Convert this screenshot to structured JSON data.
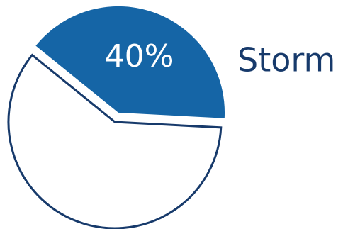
{
  "chart_data": {
    "type": "pie",
    "slices": [
      {
        "label": "Storm",
        "value": 40,
        "display": "40%",
        "color": "#1565a6",
        "exploded": true
      },
      {
        "label": "",
        "value": 60,
        "display": "",
        "color": "#ffffff",
        "exploded": false
      }
    ],
    "legend": {
      "placement": "right"
    },
    "colors": {
      "outline": "#173a6b",
      "highlight_fill": "#1565a6",
      "other_fill": "#ffffff"
    }
  }
}
